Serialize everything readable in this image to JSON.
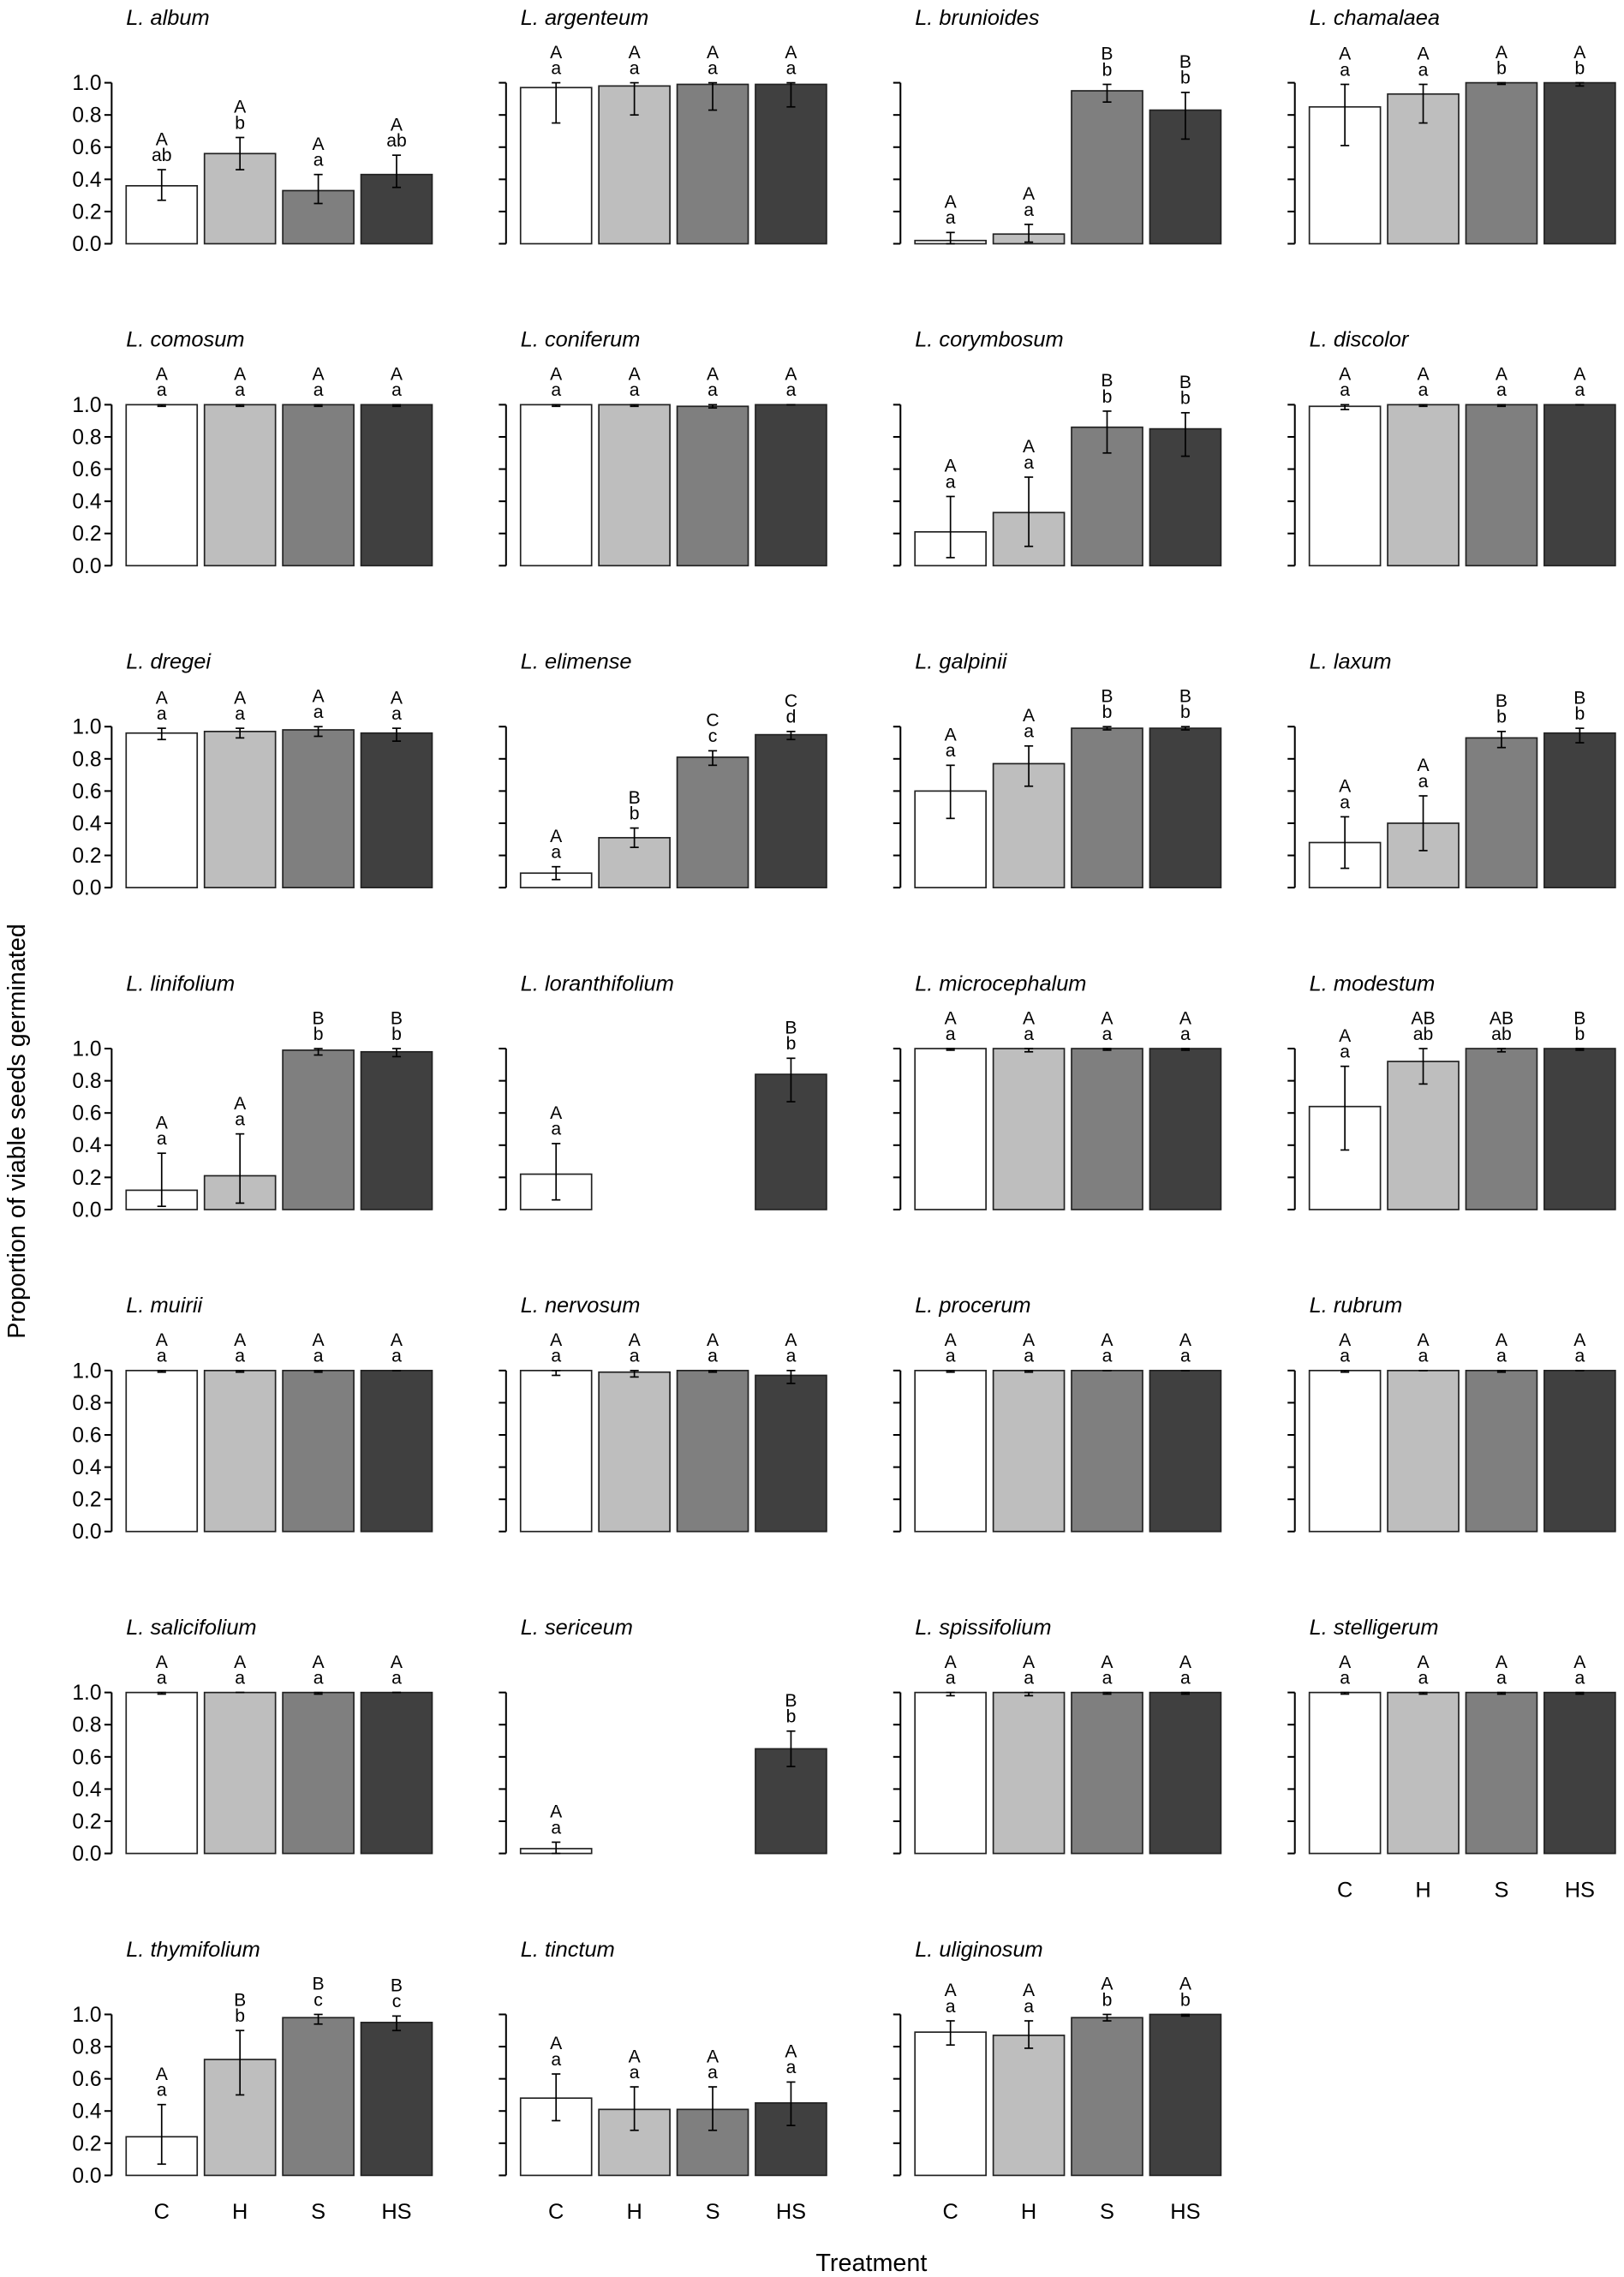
{
  "chart_data": {
    "type": "bar",
    "layout": "small-multiples 7x4",
    "xlabel": "Treatment",
    "ylabel": "Proportion of viable seeds germinated",
    "categories": [
      "C",
      "H",
      "S",
      "HS"
    ],
    "ylim": [
      0,
      1
    ],
    "yticks": [
      "0.0",
      "0.2",
      "0.4",
      "0.6",
      "0.8",
      "1.0"
    ],
    "colors": [
      "#ffffff",
      "#bebebe",
      "#7f7f7f",
      "#404040"
    ],
    "panels": [
      {
        "species": "L. album",
        "values": [
          0.36,
          0.56,
          0.33,
          0.43
        ],
        "err_low": [
          0.27,
          0.46,
          0.25,
          0.35
        ],
        "err_high": [
          0.46,
          0.66,
          0.43,
          0.55
        ],
        "upper": [
          "A",
          "A",
          "A",
          "A"
        ],
        "lower": [
          "ab",
          "b",
          "a",
          "ab"
        ]
      },
      {
        "species": "L. argenteum",
        "values": [
          0.97,
          0.98,
          0.99,
          0.99
        ],
        "err_low": [
          0.75,
          0.8,
          0.83,
          0.85
        ],
        "err_high": [
          1.0,
          1.0,
          1.0,
          1.0
        ],
        "upper": [
          "A",
          "A",
          "A",
          "A"
        ],
        "lower": [
          "a",
          "a",
          "a",
          "a"
        ]
      },
      {
        "species": "L. brunioides",
        "values": [
          0.02,
          0.06,
          0.95,
          0.83
        ],
        "err_low": [
          0.0,
          0.01,
          0.88,
          0.65
        ],
        "err_high": [
          0.07,
          0.12,
          0.99,
          0.94
        ],
        "upper": [
          "A",
          "A",
          "B",
          "B"
        ],
        "lower": [
          "a",
          "a",
          "b",
          "b"
        ]
      },
      {
        "species": "L. chamalaea",
        "values": [
          0.85,
          0.93,
          1.0,
          1.0
        ],
        "err_low": [
          0.61,
          0.75,
          0.99,
          0.98
        ],
        "err_high": [
          0.99,
          0.99,
          1.0,
          1.0
        ],
        "upper": [
          "A",
          "A",
          "A",
          "A"
        ],
        "lower": [
          "a",
          "a",
          "b",
          "b"
        ]
      },
      {
        "species": "L. comosum",
        "values": [
          1.0,
          1.0,
          1.0,
          1.0
        ],
        "err_low": [
          0.99,
          0.99,
          0.99,
          0.99
        ],
        "err_high": [
          1.0,
          1.0,
          1.0,
          1.0
        ],
        "upper": [
          "A",
          "A",
          "A",
          "A"
        ],
        "lower": [
          "a",
          "a",
          "a",
          "a"
        ]
      },
      {
        "species": "L. coniferum",
        "values": [
          1.0,
          1.0,
          0.99,
          1.0
        ],
        "err_low": [
          0.99,
          0.99,
          0.98,
          1.0
        ],
        "err_high": [
          1.0,
          1.0,
          1.0,
          1.0
        ],
        "upper": [
          "A",
          "A",
          "A",
          "A"
        ],
        "lower": [
          "a",
          "a",
          "a",
          "a"
        ]
      },
      {
        "species": "L. corymbosum",
        "values": [
          0.21,
          0.33,
          0.86,
          0.85
        ],
        "err_low": [
          0.05,
          0.12,
          0.7,
          0.68
        ],
        "err_high": [
          0.43,
          0.55,
          0.96,
          0.95
        ],
        "upper": [
          "A",
          "A",
          "B",
          "B"
        ],
        "lower": [
          "a",
          "a",
          "b",
          "b"
        ]
      },
      {
        "species": "L. discolor",
        "values": [
          0.99,
          1.0,
          1.0,
          1.0
        ],
        "err_low": [
          0.97,
          0.99,
          0.99,
          1.0
        ],
        "err_high": [
          1.0,
          1.0,
          1.0,
          1.0
        ],
        "upper": [
          "A",
          "A",
          "A",
          "A"
        ],
        "lower": [
          "a",
          "a",
          "a",
          "a"
        ]
      },
      {
        "species": "L. dregei",
        "values": [
          0.96,
          0.97,
          0.98,
          0.96
        ],
        "err_low": [
          0.92,
          0.93,
          0.94,
          0.91
        ],
        "err_high": [
          0.99,
          0.99,
          1.0,
          0.99
        ],
        "upper": [
          "A",
          "A",
          "A",
          "A"
        ],
        "lower": [
          "a",
          "a",
          "a",
          "a"
        ]
      },
      {
        "species": "L. elimense",
        "values": [
          0.09,
          0.31,
          0.81,
          0.95
        ],
        "err_low": [
          0.05,
          0.25,
          0.76,
          0.92
        ],
        "err_high": [
          0.13,
          0.37,
          0.85,
          0.97
        ],
        "upper": [
          "A",
          "B",
          "C",
          "C"
        ],
        "lower": [
          "a",
          "b",
          "c",
          "d"
        ]
      },
      {
        "species": "L. galpinii",
        "values": [
          0.6,
          0.77,
          0.99,
          0.99
        ],
        "err_low": [
          0.43,
          0.63,
          0.98,
          0.98
        ],
        "err_high": [
          0.76,
          0.88,
          1.0,
          1.0
        ],
        "upper": [
          "A",
          "A",
          "B",
          "B"
        ],
        "lower": [
          "a",
          "a",
          "b",
          "b"
        ]
      },
      {
        "species": "L. laxum",
        "values": [
          0.28,
          0.4,
          0.93,
          0.96
        ],
        "err_low": [
          0.12,
          0.23,
          0.87,
          0.9
        ],
        "err_high": [
          0.44,
          0.57,
          0.97,
          0.99
        ],
        "upper": [
          "A",
          "A",
          "B",
          "B"
        ],
        "lower": [
          "a",
          "a",
          "b",
          "b"
        ]
      },
      {
        "species": "L. linifolium",
        "values": [
          0.12,
          0.21,
          0.99,
          0.98
        ],
        "err_low": [
          0.02,
          0.04,
          0.96,
          0.95
        ],
        "err_high": [
          0.35,
          0.47,
          1.0,
          1.0
        ],
        "upper": [
          "A",
          "A",
          "B",
          "B"
        ],
        "lower": [
          "a",
          "a",
          "b",
          "b"
        ]
      },
      {
        "species": "L. loranthifolium",
        "values": [
          0.22,
          null,
          null,
          0.84
        ],
        "err_low": [
          0.06,
          null,
          null,
          0.67
        ],
        "err_high": [
          0.41,
          null,
          null,
          0.94
        ],
        "upper": [
          "A",
          "",
          "",
          "B"
        ],
        "lower": [
          "a",
          "",
          "",
          "b"
        ]
      },
      {
        "species": "L. microcephalum",
        "values": [
          1.0,
          1.0,
          1.0,
          1.0
        ],
        "err_low": [
          0.99,
          0.98,
          0.99,
          0.99
        ],
        "err_high": [
          1.0,
          1.0,
          1.0,
          1.0
        ],
        "upper": [
          "A",
          "A",
          "A",
          "A"
        ],
        "lower": [
          "a",
          "a",
          "a",
          "a"
        ]
      },
      {
        "species": "L. modestum",
        "values": [
          0.64,
          0.92,
          1.0,
          1.0
        ],
        "err_low": [
          0.37,
          0.78,
          0.98,
          0.99
        ],
        "err_high": [
          0.89,
          1.0,
          1.0,
          1.0
        ],
        "upper": [
          "A",
          "AB",
          "AB",
          "B"
        ],
        "lower": [
          "a",
          "ab",
          "ab",
          "b"
        ]
      },
      {
        "species": "L. muirii",
        "values": [
          1.0,
          1.0,
          1.0,
          1.0
        ],
        "err_low": [
          0.99,
          0.99,
          0.99,
          1.0
        ],
        "err_high": [
          1.0,
          1.0,
          1.0,
          1.0
        ],
        "upper": [
          "A",
          "A",
          "A",
          "A"
        ],
        "lower": [
          "a",
          "a",
          "a",
          "a"
        ]
      },
      {
        "species": "L. nervosum",
        "values": [
          1.0,
          0.99,
          1.0,
          0.97
        ],
        "err_low": [
          0.97,
          0.96,
          0.99,
          0.92
        ],
        "err_high": [
          1.0,
          1.0,
          1.0,
          1.0
        ],
        "upper": [
          "A",
          "A",
          "A",
          "A"
        ],
        "lower": [
          "a",
          "a",
          "a",
          "a"
        ]
      },
      {
        "species": "L. procerum",
        "values": [
          1.0,
          1.0,
          1.0,
          1.0
        ],
        "err_low": [
          0.99,
          0.99,
          1.0,
          1.0
        ],
        "err_high": [
          1.0,
          1.0,
          1.0,
          1.0
        ],
        "upper": [
          "A",
          "A",
          "A",
          "A"
        ],
        "lower": [
          "a",
          "a",
          "a",
          "a"
        ]
      },
      {
        "species": "L. rubrum",
        "values": [
          1.0,
          1.0,
          1.0,
          1.0
        ],
        "err_low": [
          0.99,
          1.0,
          0.99,
          1.0
        ],
        "err_high": [
          1.0,
          1.0,
          1.0,
          1.0
        ],
        "upper": [
          "A",
          "A",
          "A",
          "A"
        ],
        "lower": [
          "a",
          "a",
          "a",
          "a"
        ]
      },
      {
        "species": "L. salicifolium",
        "values": [
          1.0,
          1.0,
          1.0,
          1.0
        ],
        "err_low": [
          0.99,
          1.0,
          0.99,
          1.0
        ],
        "err_high": [
          1.0,
          1.0,
          1.0,
          1.0
        ],
        "upper": [
          "A",
          "A",
          "A",
          "A"
        ],
        "lower": [
          "a",
          "a",
          "a",
          "a"
        ]
      },
      {
        "species": "L. sericeum",
        "values": [
          0.03,
          null,
          null,
          0.65
        ],
        "err_low": [
          0.0,
          null,
          null,
          0.54
        ],
        "err_high": [
          0.07,
          null,
          null,
          0.76
        ],
        "upper": [
          "A",
          "",
          "",
          "B"
        ],
        "lower": [
          "a",
          "",
          "",
          "b"
        ]
      },
      {
        "species": "L. spissifolium",
        "values": [
          1.0,
          1.0,
          1.0,
          1.0
        ],
        "err_low": [
          0.98,
          0.98,
          0.99,
          0.99
        ],
        "err_high": [
          1.0,
          1.0,
          1.0,
          1.0
        ],
        "upper": [
          "A",
          "A",
          "A",
          "A"
        ],
        "lower": [
          "a",
          "a",
          "a",
          "a"
        ]
      },
      {
        "species": "L. stelligerum",
        "values": [
          1.0,
          1.0,
          1.0,
          1.0
        ],
        "err_low": [
          0.99,
          0.99,
          0.99,
          0.99
        ],
        "err_high": [
          1.0,
          1.0,
          1.0,
          1.0
        ],
        "upper": [
          "A",
          "A",
          "A",
          "A"
        ],
        "lower": [
          "a",
          "a",
          "a",
          "a"
        ]
      },
      {
        "species": "L. thymifolium",
        "values": [
          0.24,
          0.72,
          0.98,
          0.95
        ],
        "err_low": [
          0.07,
          0.5,
          0.94,
          0.9
        ],
        "err_high": [
          0.44,
          0.9,
          1.0,
          0.99
        ],
        "upper": [
          "A",
          "B",
          "B",
          "B"
        ],
        "lower": [
          "a",
          "b",
          "c",
          "c"
        ]
      },
      {
        "species": "L. tinctum",
        "values": [
          0.48,
          0.41,
          0.41,
          0.45
        ],
        "err_low": [
          0.34,
          0.28,
          0.28,
          0.31
        ],
        "err_high": [
          0.63,
          0.55,
          0.55,
          0.58
        ],
        "upper": [
          "A",
          "A",
          "A",
          "A"
        ],
        "lower": [
          "a",
          "a",
          "a",
          "a"
        ]
      },
      {
        "species": "L. uliginosum",
        "values": [
          0.89,
          0.87,
          0.98,
          1.0
        ],
        "err_low": [
          0.81,
          0.79,
          0.96,
          0.99
        ],
        "err_high": [
          0.96,
          0.96,
          1.0,
          1.0
        ],
        "upper": [
          "A",
          "A",
          "A",
          "A"
        ],
        "lower": [
          "a",
          "a",
          "b",
          "b"
        ]
      }
    ]
  }
}
